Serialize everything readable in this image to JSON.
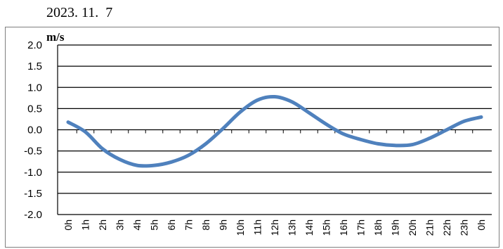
{
  "header": {
    "date": "2023. 11.  7"
  },
  "chart_data": {
    "type": "line",
    "title": "",
    "xlabel": "",
    "ylabel": "m/s",
    "ylim": [
      -2.0,
      2.0
    ],
    "yticks": [
      "2.0",
      "1.5",
      "1.0",
      "0.5",
      "0.0",
      "-0.5",
      "-1.0",
      "-1.5",
      "-2.0"
    ],
    "categories": [
      "0h",
      "1h",
      "2h",
      "3h",
      "4h",
      "5h",
      "6h",
      "7h",
      "8h",
      "9h",
      "10h",
      "11h",
      "12h",
      "13h",
      "14h",
      "15h",
      "16h",
      "17h",
      "18h",
      "19h",
      "20h",
      "21h",
      "22h",
      "23h",
      "0h"
    ],
    "grid": "horizontal",
    "legend": "none",
    "series": [
      {
        "color": "#4f81bd",
        "values": [
          0.18,
          -0.05,
          -0.45,
          -0.7,
          -0.84,
          -0.84,
          -0.76,
          -0.6,
          -0.33,
          0.03,
          0.42,
          0.7,
          0.78,
          0.66,
          0.4,
          0.13,
          -0.1,
          -0.23,
          -0.33,
          -0.37,
          -0.35,
          -0.2,
          0.0,
          0.2,
          0.3
        ]
      }
    ]
  }
}
